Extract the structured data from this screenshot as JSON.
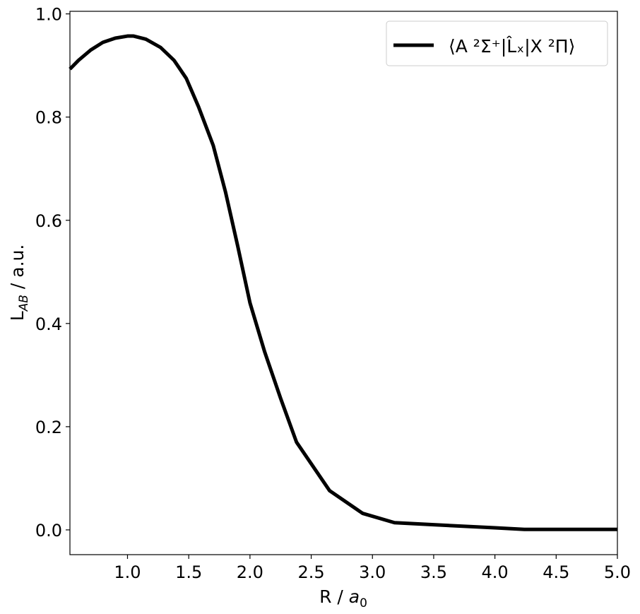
{
  "chart_data": {
    "type": "line",
    "title": "",
    "xlabel": {
      "main": "R / ",
      "var": "a",
      "sub": "0"
    },
    "ylabel": {
      "main": "L",
      "sub": "AB",
      "rest": " / a.u."
    },
    "xlim": [
      0.53,
      5.0
    ],
    "ylim": [
      -0.048,
      1.005
    ],
    "x_ticks": [
      1.0,
      1.5,
      2.0,
      2.5,
      3.0,
      3.5,
      4.0,
      4.5,
      5.0
    ],
    "x_tick_labels": [
      "1.0",
      "1.5",
      "2.0",
      "2.5",
      "3.0",
      "3.5",
      "4.0",
      "4.5",
      "5.0"
    ],
    "y_ticks": [
      0.0,
      0.2,
      0.4,
      0.6,
      0.8,
      1.0
    ],
    "y_tick_labels": [
      "0.0",
      "0.2",
      "0.4",
      "0.6",
      "0.8",
      "1.0"
    ],
    "grid": false,
    "legend_position": "top-right",
    "series": [
      {
        "name": "⟨A ²Σ⁺|L̂ₓ|X ²Π⟩",
        "color": "#000000",
        "x": [
          0.53,
          0.6,
          0.7,
          0.8,
          0.9,
          1.0,
          1.05,
          1.15,
          1.27,
          1.38,
          1.48,
          1.58,
          1.7,
          1.8,
          1.9,
          2.0,
          2.12,
          2.25,
          2.38,
          2.65,
          2.92,
          3.18,
          3.5,
          4.0,
          4.24,
          4.5,
          5.0
        ],
        "y": [
          0.893,
          0.91,
          0.93,
          0.945,
          0.953,
          0.957,
          0.957,
          0.951,
          0.935,
          0.91,
          0.875,
          0.82,
          0.745,
          0.655,
          0.55,
          0.44,
          0.345,
          0.255,
          0.17,
          0.076,
          0.032,
          0.014,
          0.01,
          0.004,
          0.001,
          0.001,
          0.001
        ]
      }
    ]
  }
}
